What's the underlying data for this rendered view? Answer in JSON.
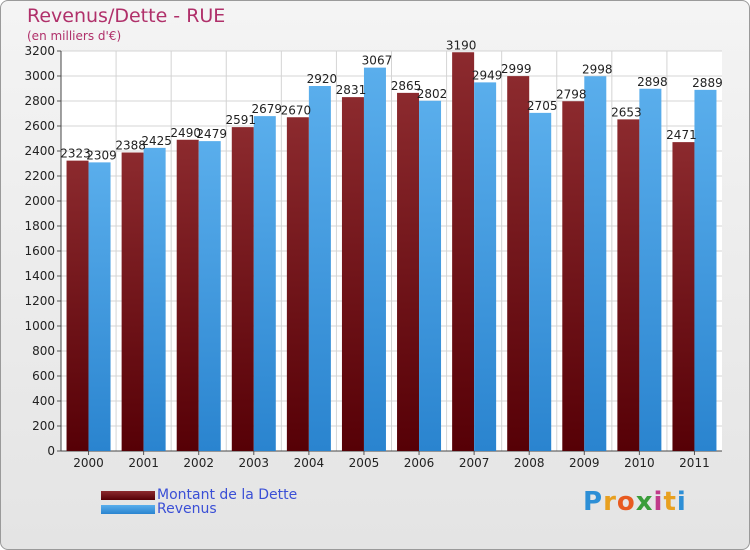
{
  "title": "Revenus/Dette - RUE",
  "subtitle": "(en milliers d'€)",
  "logo": {
    "text": "Proxiti",
    "letter_colors": [
      "#2d8fd6",
      "#e8a020",
      "#e85a20",
      "#3a9d3a",
      "#c03a8a",
      "#e8a020",
      "#2d8fd6"
    ]
  },
  "colors": {
    "dette": "#6e1216",
    "revenus": "#3f9de2",
    "title": "#b0306a"
  },
  "chart_data": {
    "type": "bar",
    "categories": [
      "2000",
      "2001",
      "2002",
      "2003",
      "2004",
      "2005",
      "2006",
      "2007",
      "2008",
      "2009",
      "2010",
      "2011"
    ],
    "series": [
      {
        "name": "Montant de la Dette",
        "values": [
          2323,
          2388,
          2490,
          2591,
          2670,
          2831,
          2865,
          3190,
          2999,
          2798,
          2653,
          2471
        ]
      },
      {
        "name": "Revenus",
        "values": [
          2309,
          2425,
          2479,
          2679,
          2920,
          3067,
          2802,
          2949,
          2705,
          2998,
          2898,
          2889
        ]
      }
    ],
    "ylim": [
      0,
      3200
    ],
    "yticks": [
      0,
      200,
      400,
      600,
      800,
      1000,
      1200,
      1400,
      1600,
      1800,
      2000,
      2200,
      2400,
      2600,
      2800,
      3000,
      3200
    ],
    "grid": true,
    "legend": "bottom-left"
  }
}
